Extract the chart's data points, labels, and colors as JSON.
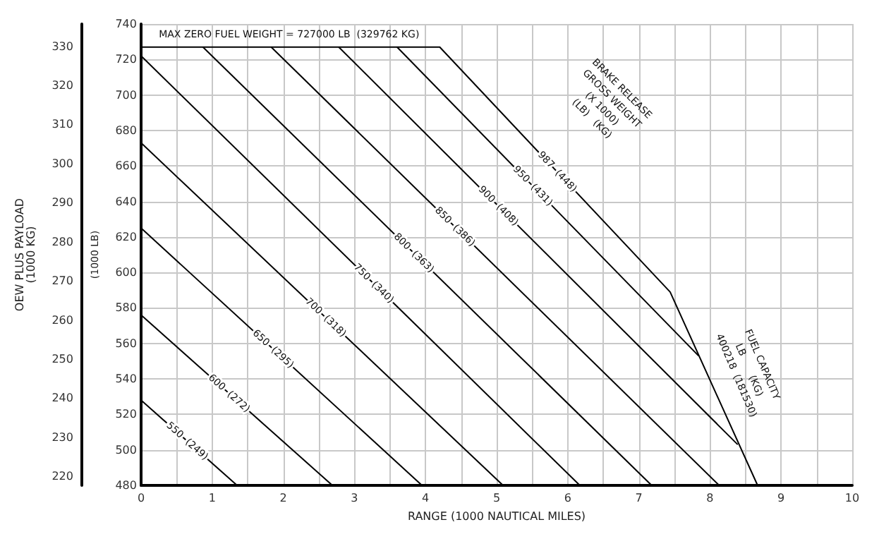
{
  "chart_data": {
    "type": "line",
    "xlabel": "RANGE (1000 NAUTICAL MILES)",
    "ylabel": "(1000 LB)",
    "y2label": "OEW PLUS PAYLOAD\n(1000 KG)",
    "xlim": [
      0,
      10
    ],
    "xticks": [
      0,
      {
        "value": 0.5,
        "label": null
      },
      1,
      {
        "value": 1.5,
        "label": null
      },
      2,
      {
        "value": 2.5,
        "label": null
      },
      3,
      {
        "value": 3.5,
        "label": null
      },
      4,
      {
        "value": 4.5,
        "label": null
      },
      5,
      {
        "value": 5.5,
        "label": null
      },
      6,
      {
        "value": 6.5,
        "label": null
      },
      7,
      {
        "value": 7.5,
        "label": null
      },
      8,
      {
        "value": 8.5,
        "label": null
      },
      9,
      {
        "value": 9.5,
        "label": null
      },
      10
    ],
    "ylim": [
      480,
      740
    ],
    "yticks": [
      480,
      500,
      520,
      540,
      560,
      580,
      600,
      620,
      640,
      660,
      680,
      700,
      720,
      740
    ],
    "y2lim": [
      217.7,
      335.7
    ],
    "y2ticks": [
      220,
      230,
      240,
      250,
      260,
      270,
      280,
      290,
      300,
      310,
      320,
      330
    ],
    "grid": true,
    "marker": "none",
    "line_style": "solid",
    "series": [
      {
        "name": "550  (249)",
        "color": "#000000",
        "x": [
          0,
          1.35
        ],
        "values": [
          528,
          480
        ]
      },
      {
        "name": "600  (272)",
        "color": "#000000",
        "x": [
          0,
          2.69
        ],
        "values": [
          576,
          480
        ]
      },
      {
        "name": "650  (295)",
        "color": "#000000",
        "x": [
          0,
          3.95
        ],
        "values": [
          625,
          480
        ]
      },
      {
        "name": "700  (318)",
        "color": "#000000",
        "x": [
          0,
          5.09
        ],
        "values": [
          673,
          480
        ]
      },
      {
        "name": "750  (340)",
        "color": "#000000",
        "x": [
          0,
          6.17
        ],
        "values": [
          722,
          480
        ]
      },
      {
        "name": "800  (363)",
        "color": "#000000",
        "x": [
          0.87,
          7.18
        ],
        "values": [
          727,
          480
        ]
      },
      {
        "name": "850  (386)",
        "color": "#000000",
        "x": [
          1.83,
          8.13
        ],
        "values": [
          727,
          480
        ]
      },
      {
        "name": "900  (408)",
        "color": "#000000",
        "x": [
          2.78,
          8.39
        ],
        "values": [
          727,
          503
        ]
      },
      {
        "name": "950  (431)",
        "color": "#000000",
        "x": [
          3.6,
          7.84
        ],
        "values": [
          727,
          553
        ]
      },
      {
        "name": "987  (448)",
        "color": "#000000",
        "x": [
          0,
          4.2,
          7.44,
          8.67
        ],
        "values": [
          727,
          727,
          589,
          480
        ]
      }
    ],
    "annotations": [
      "MAX ZERO FUEL WEIGHT = 727000 LB  (329762 KG)",
      "BRAKE RELEASE\nGROSS WEIGHT\n(X 1000)\n(LB)   (KG)",
      "FUEL CAPACITY\nLB       (KG)\n400218  (181530)"
    ]
  }
}
